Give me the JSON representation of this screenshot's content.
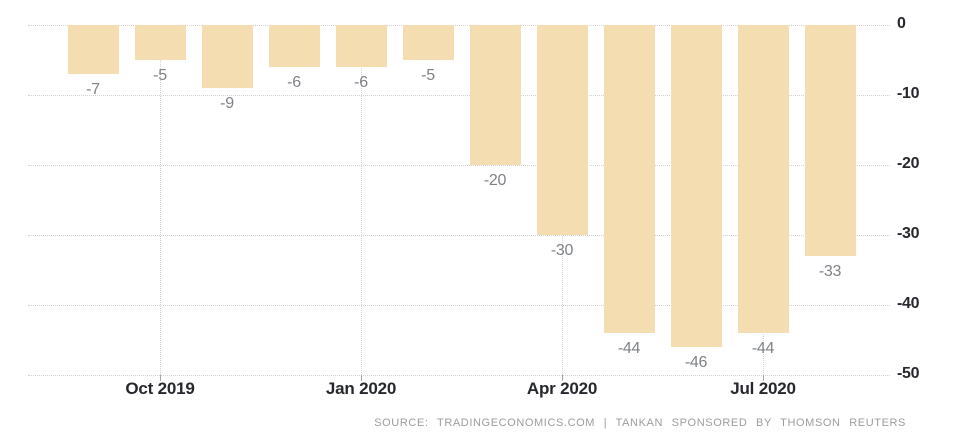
{
  "chart_data": {
    "type": "bar",
    "title": "",
    "values": [
      -7,
      -5,
      -9,
      -6,
      -6,
      -5,
      -20,
      -30,
      -44,
      -46,
      -44,
      -33
    ],
    "bar_labels": [
      "-7",
      "-5",
      "-9",
      "-6",
      "-6",
      "-5",
      "-20",
      "-30",
      "-44",
      "-46",
      "-44",
      "-33"
    ],
    "x_ticks": [
      {
        "bar_index": 1,
        "label": "Oct 2019"
      },
      {
        "bar_index": 4,
        "label": "Jan 2020"
      },
      {
        "bar_index": 7,
        "label": "Apr 2020"
      },
      {
        "bar_index": 10,
        "label": "Jul 2020"
      }
    ],
    "y_ticks": [
      0,
      -10,
      -20,
      -30,
      -40,
      -50
    ],
    "y_tick_labels": [
      "0",
      "-10",
      "-20",
      "-30",
      "-40",
      "-50"
    ],
    "ylim": [
      0,
      -50
    ],
    "grid": "dotted",
    "legend": "none",
    "colors": {
      "bar": "#f4deb1",
      "grid": "#d2d2d2",
      "axis_label": "#26282d",
      "value_label": "#7e8186",
      "tick_mark": "#a5a5a5",
      "background": "#ffffff"
    }
  },
  "footer": {
    "source_text": "SOURCE: TRADINGECONOMICS.COM | TANKAN SPONSORED BY THOMSON REUTERS"
  }
}
